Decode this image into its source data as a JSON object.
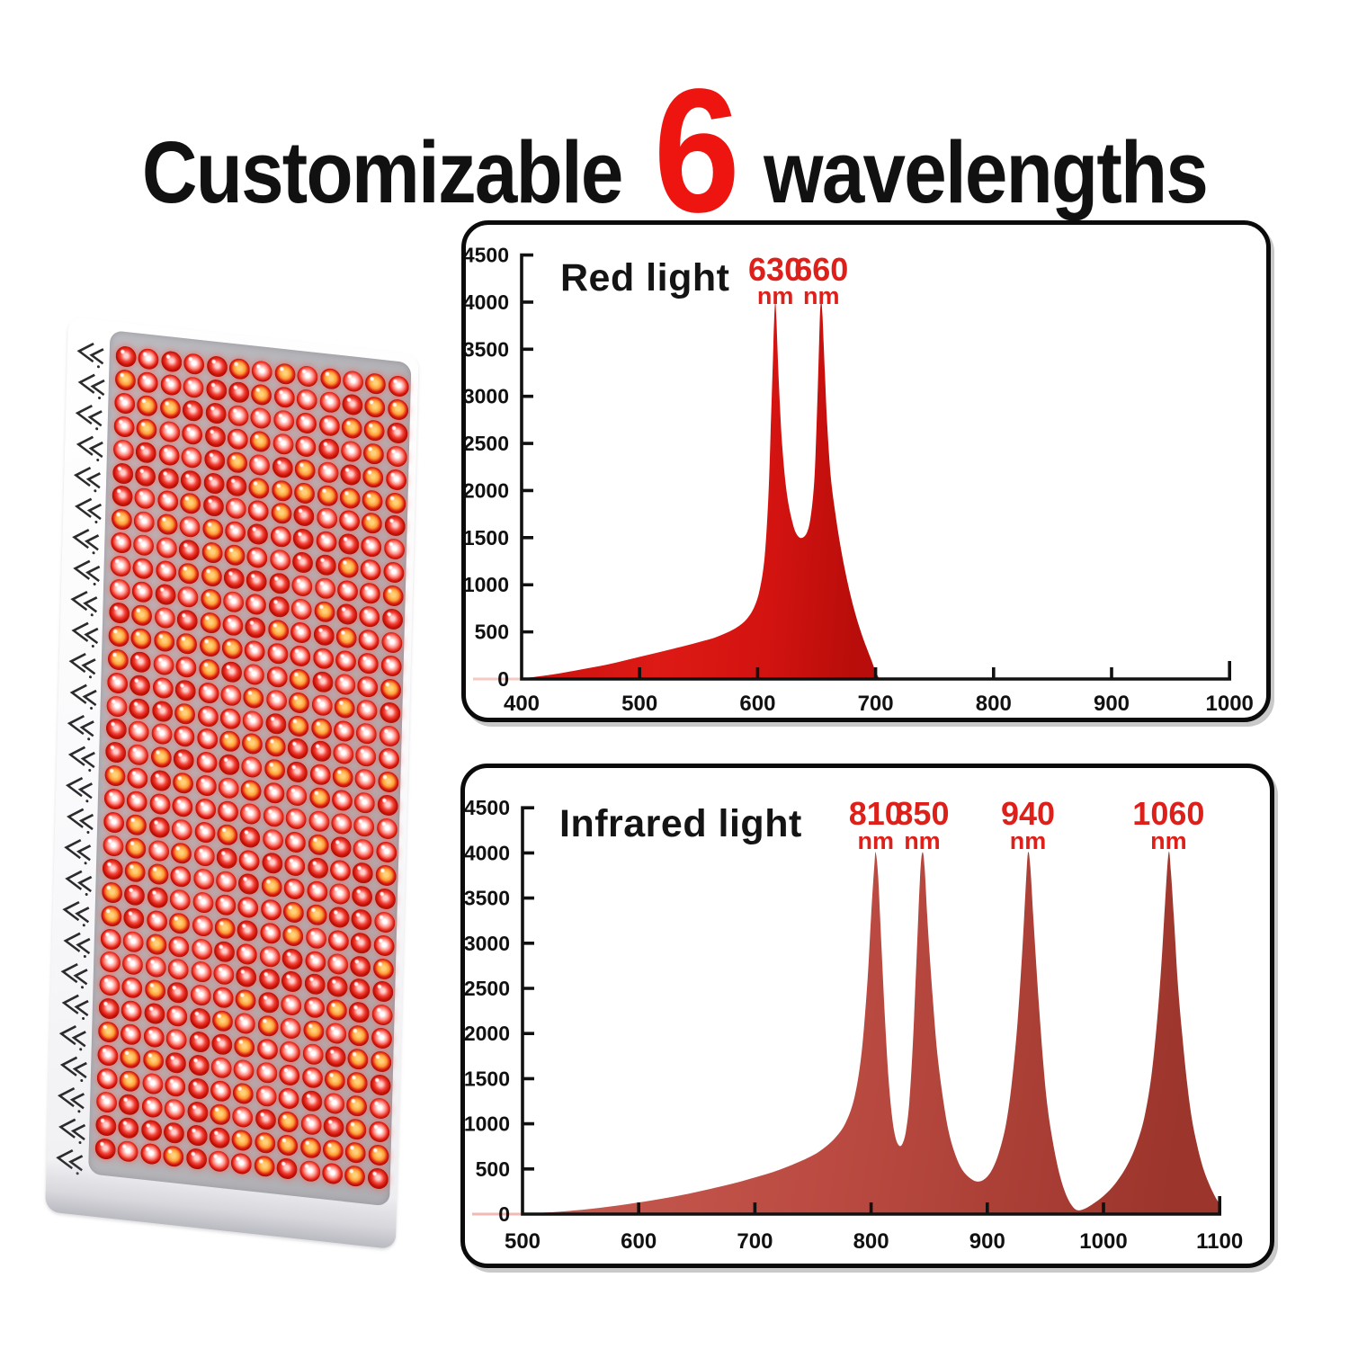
{
  "title": {
    "prefix": "Customizable",
    "highlight": "6",
    "suffix": "wavelengths",
    "highlight_color": "#ee1511",
    "text_color": "#111111"
  },
  "device": {
    "name": "red light therapy LED panel",
    "led_rows": 35,
    "led_cols": 13,
    "face_color": "#b4b3b7",
    "body_color": "#f7f7f9",
    "vent_rows": 27,
    "vent_color": "#2b2b2e",
    "glow_color": "rgba(255,82,70,0.55)",
    "led_variants": [
      {
        "name": "white-swirl",
        "core": "#ffffff",
        "mid": "#ff8b82",
        "ring": "#e0180d"
      },
      {
        "name": "amber-core",
        "core": "#ffd27a",
        "mid": "#ff9d36",
        "ring": "#da1a10"
      },
      {
        "name": "red-marble",
        "core": "#ffd0cc",
        "mid": "#f4443a",
        "ring": "#c81207"
      },
      {
        "name": "pink-glow",
        "core": "#ffffff",
        "mid": "#ff958d",
        "ring": "#e8291d"
      }
    ]
  },
  "chart_data": [
    {
      "type": "area",
      "title": "Red light",
      "xlim": [
        400,
        1000
      ],
      "ylim": [
        0,
        4500
      ],
      "x_ticks": [
        400,
        500,
        600,
        700,
        800,
        900,
        1000
      ],
      "y_ticks": [
        0,
        500,
        1000,
        1500,
        2000,
        2500,
        3000,
        3500,
        4000,
        4500
      ],
      "grid": false,
      "legend": "none",
      "axis_color": "#111111",
      "label_color": "#dd211a",
      "baseline_color": "#f6c9c4",
      "fill_stops": [
        [
          0,
          "#c5100e"
        ],
        [
          0.45,
          "#dd1a15"
        ],
        [
          0.75,
          "#d31310"
        ],
        [
          1,
          "#b80d0a"
        ]
      ],
      "peaks": [
        {
          "value": "630",
          "unit": "nm",
          "at": 615
        },
        {
          "value": "660",
          "unit": "nm",
          "at": 654
        }
      ],
      "points": [
        [
          400,
          5
        ],
        [
          425,
          45
        ],
        [
          450,
          100
        ],
        [
          475,
          160
        ],
        [
          500,
          235
        ],
        [
          525,
          310
        ],
        [
          550,
          390
        ],
        [
          565,
          445
        ],
        [
          580,
          530
        ],
        [
          590,
          625
        ],
        [
          597,
          760
        ],
        [
          602,
          960
        ],
        [
          606,
          1300
        ],
        [
          609,
          1900
        ],
        [
          611,
          2600
        ],
        [
          613,
          3400
        ],
        [
          614,
          3800
        ],
        [
          615,
          4000
        ],
        [
          616,
          3800
        ],
        [
          618,
          3150
        ],
        [
          621,
          2450
        ],
        [
          625,
          1950
        ],
        [
          630,
          1640
        ],
        [
          634,
          1520
        ],
        [
          638,
          1500
        ],
        [
          642,
          1560
        ],
        [
          645,
          1720
        ],
        [
          648,
          2100
        ],
        [
          650,
          2700
        ],
        [
          652,
          3500
        ],
        [
          653,
          3900
        ],
        [
          654,
          4000
        ],
        [
          655,
          3850
        ],
        [
          657,
          3250
        ],
        [
          659,
          2700
        ],
        [
          662,
          2150
        ],
        [
          666,
          1750
        ],
        [
          670,
          1430
        ],
        [
          674,
          1160
        ],
        [
          678,
          930
        ],
        [
          682,
          730
        ],
        [
          686,
          560
        ],
        [
          690,
          410
        ],
        [
          694,
          280
        ],
        [
          697,
          180
        ],
        [
          700,
          80
        ],
        [
          703,
          5
        ]
      ]
    },
    {
      "type": "area",
      "title": "Infrared light",
      "xlim": [
        500,
        1100
      ],
      "ylim": [
        0,
        4500
      ],
      "x_ticks": [
        500,
        600,
        700,
        800,
        900,
        1000,
        1100
      ],
      "y_ticks": [
        0,
        500,
        1000,
        1500,
        2000,
        2500,
        3000,
        3500,
        4000,
        4500
      ],
      "grid": false,
      "legend": "none",
      "axis_color": "#111111",
      "label_color": "#dd211a",
      "baseline_color": "#f2b9b3",
      "fill_stops": [
        [
          0,
          "#c85e54"
        ],
        [
          0.5,
          "#bb4b42"
        ],
        [
          1,
          "#9c352c"
        ]
      ],
      "peaks": [
        {
          "value": "810",
          "unit": "nm",
          "at": 804
        },
        {
          "value": "850",
          "unit": "nm",
          "at": 844
        },
        {
          "value": "940",
          "unit": "nm",
          "at": 935
        },
        {
          "value": "1060",
          "unit": "nm",
          "at": 1056
        }
      ],
      "points": [
        [
          500,
          5
        ],
        [
          530,
          25
        ],
        [
          560,
          60
        ],
        [
          590,
          110
        ],
        [
          620,
          170
        ],
        [
          650,
          245
        ],
        [
          680,
          335
        ],
        [
          700,
          405
        ],
        [
          720,
          485
        ],
        [
          740,
          590
        ],
        [
          755,
          690
        ],
        [
          768,
          830
        ],
        [
          778,
          1010
        ],
        [
          786,
          1310
        ],
        [
          792,
          1810
        ],
        [
          797,
          2600
        ],
        [
          800,
          3300
        ],
        [
          803,
          3900
        ],
        [
          804,
          4000
        ],
        [
          806,
          3750
        ],
        [
          809,
          2950
        ],
        [
          812,
          2150
        ],
        [
          815,
          1500
        ],
        [
          818,
          1080
        ],
        [
          821,
          850
        ],
        [
          824,
          760
        ],
        [
          827,
          780
        ],
        [
          830,
          920
        ],
        [
          833,
          1250
        ],
        [
          836,
          1900
        ],
        [
          839,
          2800
        ],
        [
          842,
          3700
        ],
        [
          844,
          4000
        ],
        [
          846,
          3850
        ],
        [
          849,
          3150
        ],
        [
          853,
          2400
        ],
        [
          857,
          1780
        ],
        [
          862,
          1270
        ],
        [
          867,
          900
        ],
        [
          873,
          640
        ],
        [
          879,
          480
        ],
        [
          886,
          390
        ],
        [
          892,
          360
        ],
        [
          898,
          390
        ],
        [
          904,
          490
        ],
        [
          910,
          680
        ],
        [
          916,
          990
        ],
        [
          921,
          1440
        ],
        [
          926,
          2120
        ],
        [
          930,
          2900
        ],
        [
          933,
          3600
        ],
        [
          935,
          4000
        ],
        [
          937,
          3850
        ],
        [
          940,
          3200
        ],
        [
          944,
          2400
        ],
        [
          948,
          1700
        ],
        [
          952,
          1170
        ],
        [
          957,
          760
        ],
        [
          962,
          450
        ],
        [
          967,
          240
        ],
        [
          972,
          110
        ],
        [
          977,
          45
        ],
        [
          983,
          55
        ],
        [
          990,
          105
        ],
        [
          1000,
          200
        ],
        [
          1010,
          335
        ],
        [
          1020,
          530
        ],
        [
          1028,
          760
        ],
        [
          1035,
          1060
        ],
        [
          1041,
          1510
        ],
        [
          1046,
          2120
        ],
        [
          1050,
          2800
        ],
        [
          1053,
          3450
        ],
        [
          1056,
          4000
        ],
        [
          1058,
          3800
        ],
        [
          1061,
          3200
        ],
        [
          1064,
          2550
        ],
        [
          1068,
          1950
        ],
        [
          1072,
          1450
        ],
        [
          1076,
          1060
        ],
        [
          1081,
          740
        ],
        [
          1086,
          500
        ],
        [
          1091,
          330
        ],
        [
          1095,
          220
        ],
        [
          1098,
          150
        ],
        [
          1100,
          110
        ]
      ]
    }
  ]
}
